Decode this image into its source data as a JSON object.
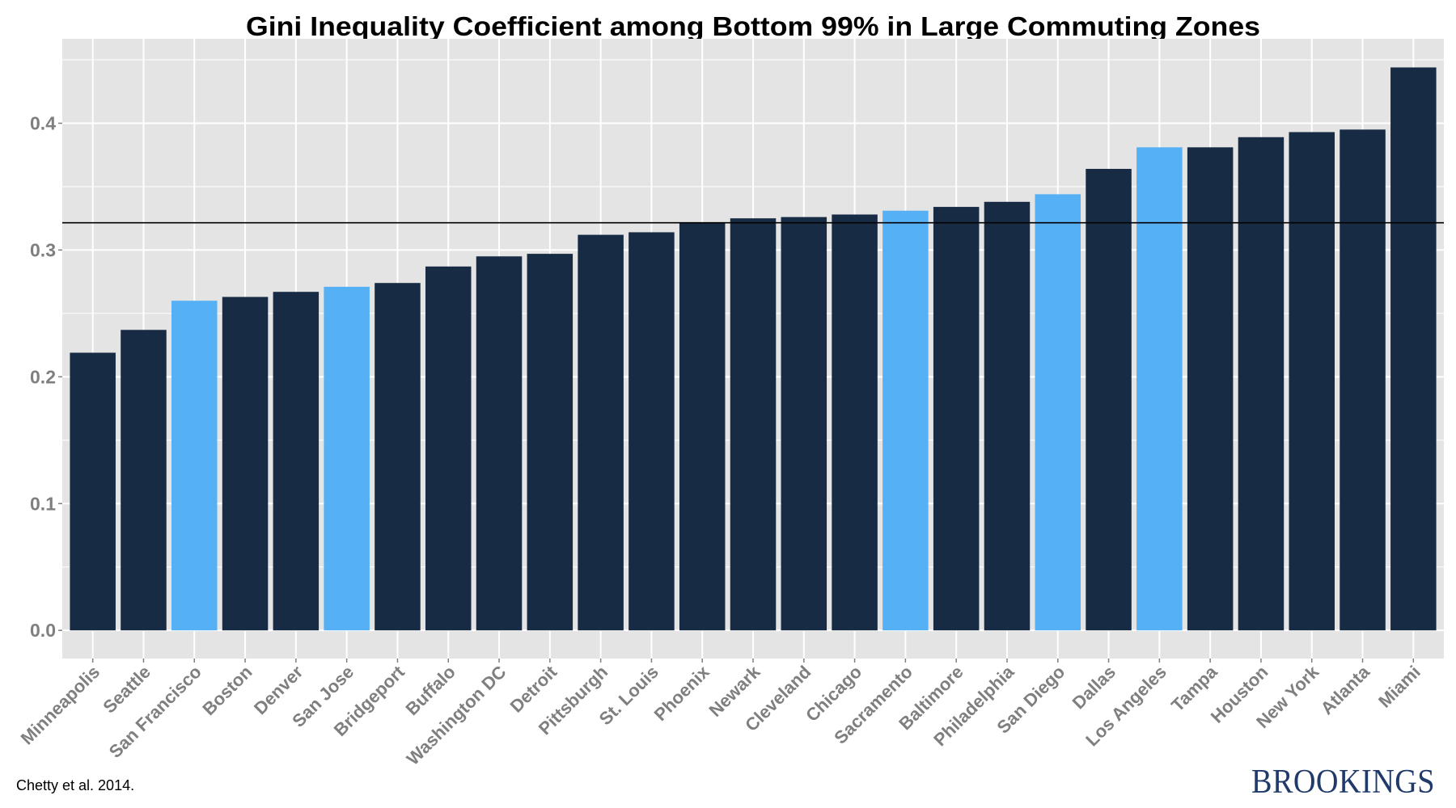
{
  "chart_data": {
    "type": "bar",
    "title": "Gini Inequality Coefficient among Bottom 99% in Large Commuting Zones",
    "xlabel": "",
    "ylabel": "",
    "ylim": [
      -0.0222,
      0.4666
    ],
    "yticks": [
      0.0,
      0.1,
      0.2,
      0.3,
      0.4
    ],
    "ytick_labels": [
      "0.0",
      "0.1",
      "0.2",
      "0.3",
      "0.4"
    ],
    "grid": true,
    "legend": "none",
    "reference_line": {
      "value": 0.3215,
      "orientation": "horizontal",
      "color": "#000000"
    },
    "colors": {
      "default": "#172b45",
      "highlight": "#55b0f6",
      "panel_background": "#e4e4e4",
      "gridline": "#ffffff",
      "tick_text": "#7f7f7f"
    },
    "categories": [
      "Minneapolis",
      "Seattle",
      "San Francisco",
      "Boston",
      "Denver",
      "San Jose",
      "Bridgeport",
      "Buffalo",
      "Washington DC",
      "Detroit",
      "Pittsburgh",
      "St. Louis",
      "Phoenix",
      "Newark",
      "Cleveland",
      "Chicago",
      "Sacramento",
      "Baltimore",
      "Philadelphia",
      "San Diego",
      "Dallas",
      "Los Angeles",
      "Tampa",
      "Houston",
      "New York",
      "Atlanta",
      "Miami"
    ],
    "values": [
      0.219,
      0.237,
      0.26,
      0.263,
      0.267,
      0.271,
      0.274,
      0.287,
      0.295,
      0.297,
      0.312,
      0.314,
      0.321,
      0.325,
      0.326,
      0.328,
      0.331,
      0.334,
      0.338,
      0.344,
      0.364,
      0.381,
      0.381,
      0.389,
      0.393,
      0.395,
      0.444
    ],
    "highlighted": [
      "San Francisco",
      "San Jose",
      "Sacramento",
      "San Diego",
      "Los Angeles"
    ]
  },
  "footer": {
    "source": "Chetty et al. 2014.",
    "brand": "BROOKINGS"
  }
}
